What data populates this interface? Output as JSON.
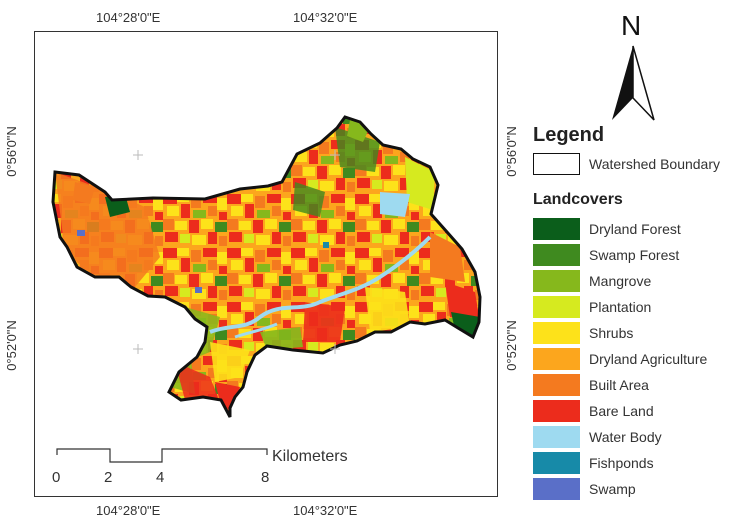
{
  "coords": {
    "top_left": "104°28'0\"E",
    "top_right": "104°32'0\"E",
    "bottom_left": "104°28'0\"E",
    "bottom_right": "104°32'0\"E",
    "left_upper": "0°56'0\"N",
    "left_lower": "0°52'0\"N",
    "right_upper": "0°56'0\"N",
    "right_lower": "0°52'0\"N"
  },
  "north": {
    "letter": "N"
  },
  "scale": {
    "ticks": [
      "0",
      "2",
      "4",
      "8"
    ],
    "unit": "Kilometers"
  },
  "legend": {
    "title": "Legend",
    "boundary_label": "Watershed Boundary",
    "landcovers_title": "Landcovers",
    "items": [
      {
        "label": "Dryland Forest",
        "color": "#0b5e1b"
      },
      {
        "label": "Swamp Forest",
        "color": "#3f8a1f"
      },
      {
        "label": "Mangrove",
        "color": "#86b81c"
      },
      {
        "label": "Plantation",
        "color": "#d6ea1f"
      },
      {
        "label": "Shrubs",
        "color": "#fde21a"
      },
      {
        "label": "Dryland Agriculture",
        "color": "#fca61d"
      },
      {
        "label": "Built Area",
        "color": "#f47a1f"
      },
      {
        "label": "Bare Land",
        "color": "#ec2c1c"
      },
      {
        "label": "Water Body",
        "color": "#9edaf0"
      },
      {
        "label": "Fishponds",
        "color": "#178aa8"
      },
      {
        "label": "Swamp",
        "color": "#5a6fc8"
      }
    ]
  }
}
